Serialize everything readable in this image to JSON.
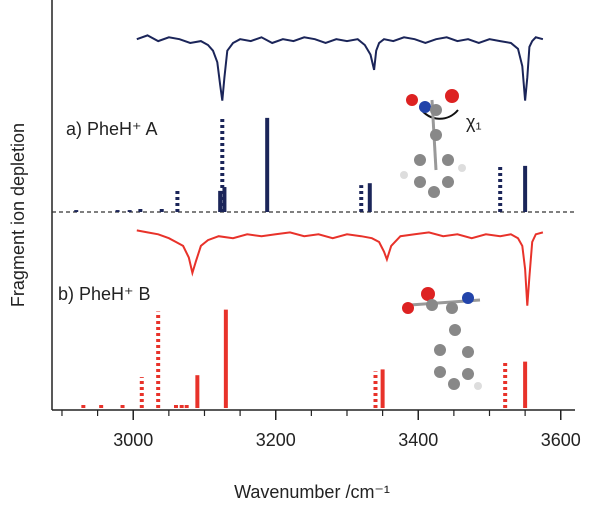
{
  "chart_data": [
    {
      "type": "stick",
      "label": "a) PheH⁺ A",
      "ylabel": "Fragment ion depletion",
      "annotation": "χ₁",
      "xlim": [
        2886,
        3620
      ],
      "ylim": [
        0,
        100
      ],
      "trace": {
        "color": "#1b2559",
        "x": [
          3005,
          3020,
          3035,
          3050,
          3065,
          3080,
          3095,
          3105,
          3112,
          3118,
          3122,
          3125,
          3128,
          3132,
          3140,
          3150,
          3165,
          3180,
          3195,
          3210,
          3225,
          3240,
          3255,
          3270,
          3285,
          3300,
          3315,
          3325,
          3333,
          3338,
          3341,
          3345,
          3352,
          3365,
          3380,
          3395,
          3410,
          3425,
          3440,
          3455,
          3470,
          3485,
          3500,
          3515,
          3530,
          3540,
          3546,
          3550,
          3553,
          3556,
          3560,
          3565,
          3575
        ],
        "values": [
          90,
          92,
          89,
          91,
          90,
          88,
          89,
          87,
          84,
          78,
          66,
          58,
          70,
          84,
          88,
          90,
          89,
          91,
          88,
          90,
          89,
          91,
          90,
          88,
          90,
          89,
          90,
          87,
          82,
          74,
          84,
          88,
          90,
          89,
          91,
          90,
          88,
          90,
          91,
          89,
          90,
          88,
          90,
          89,
          88,
          85,
          76,
          58,
          70,
          86,
          89,
          91,
          90
        ]
      },
      "series": [
        {
          "color": "#1b2559",
          "style": "solid",
          "x": [
            3122,
            3128,
            3188,
            3332,
            3550
          ],
          "values": [
            11,
            13,
            49,
            15,
            24
          ]
        },
        {
          "color": "#1b2559",
          "style": "dotted",
          "x": [
            2920,
            2978,
            2995,
            3010,
            3040,
            3062,
            3125,
            3320,
            3515
          ],
          "values": [
            1,
            1,
            1,
            2,
            2,
            11,
            49,
            14,
            24
          ]
        }
      ]
    },
    {
      "type": "stick",
      "label": "b) PheH⁺ B",
      "xlabel": "Wavenumber /cm⁻¹",
      "xlim": [
        2886,
        3620
      ],
      "ylim": [
        0,
        100
      ],
      "xticks": [
        3000,
        3200,
        3400,
        3600
      ],
      "xminorticks": [
        2900,
        2950,
        3050,
        3100,
        3150,
        3250,
        3300,
        3350,
        3450,
        3500,
        3550
      ],
      "trace": {
        "color": "#e8322a",
        "x": [
          3005,
          3020,
          3035,
          3050,
          3060,
          3070,
          3078,
          3083,
          3088,
          3095,
          3105,
          3120,
          3140,
          3160,
          3180,
          3200,
          3220,
          3240,
          3260,
          3280,
          3300,
          3320,
          3335,
          3345,
          3352,
          3356,
          3362,
          3375,
          3395,
          3415,
          3435,
          3455,
          3475,
          3495,
          3515,
          3530,
          3540,
          3546,
          3550,
          3553,
          3556,
          3560,
          3565,
          3575
        ],
        "values": [
          92,
          91,
          90,
          88,
          86,
          84,
          78,
          70,
          76,
          84,
          87,
          89,
          88,
          90,
          89,
          90,
          91,
          89,
          90,
          88,
          90,
          89,
          88,
          86,
          81,
          77,
          84,
          89,
          90,
          91,
          89,
          90,
          88,
          90,
          89,
          90,
          88,
          84,
          72,
          53,
          68,
          86,
          90,
          91
        ]
      },
      "series": [
        {
          "color": "#e8322a",
          "style": "solid",
          "x": [
            3090,
            3130,
            3350,
            3550
          ],
          "values": [
            17,
            51,
            20,
            24
          ]
        },
        {
          "color": "#e8322a",
          "style": "dotted",
          "x": [
            2930,
            2955,
            2985,
            3012,
            3035,
            3060,
            3068,
            3075,
            3340,
            3522
          ],
          "values": [
            2,
            2,
            2,
            16,
            50,
            2,
            2,
            2,
            19,
            24
          ]
        }
      ]
    }
  ]
}
